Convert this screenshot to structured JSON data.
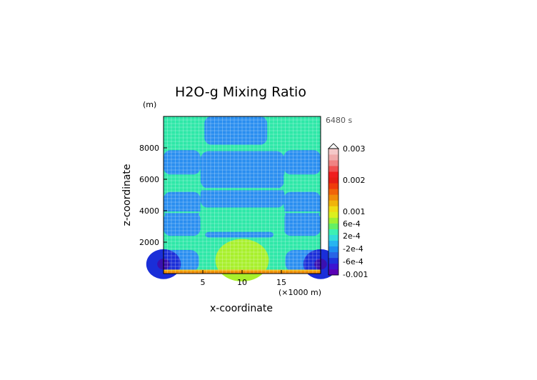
{
  "chart_data": {
    "type": "heatmap",
    "title": "H2O-g Mixing Ratio",
    "y_unit_label": "(m)",
    "x_unit_label": "(×1000 m)",
    "time_label": "6480 s",
    "xlabel": "x-coordinate",
    "ylabel": "z-coordinate",
    "xlim": [
      0,
      20
    ],
    "ylim": [
      0,
      10000
    ],
    "x_ticks": [
      5,
      10,
      15
    ],
    "x_tick_labels": [
      "5",
      "10",
      "15"
    ],
    "y_ticks": [
      2000,
      4000,
      6000,
      8000
    ],
    "y_tick_labels": [
      "2000",
      "4000",
      "6000",
      "8000"
    ],
    "colorbar": {
      "tick_labels": [
        "0.003",
        "0.002",
        "0.001",
        "6e-4",
        "2e-4",
        "-2e-4",
        "-6e-4",
        "-0.001"
      ],
      "colors": [
        "#5a00b4",
        "#3c14d2",
        "#1e32dc",
        "#2864e6",
        "#1e8cf0",
        "#28b4f0",
        "#32dcdc",
        "#3cf0b4",
        "#64f064",
        "#a0f032",
        "#dcf01e",
        "#f0dc14",
        "#f0b40a",
        "#f08c0a",
        "#f0640a",
        "#f03c0a",
        "#e61e14",
        "#f01e1e",
        "#f05050",
        "#f08282",
        "#f0aaaa",
        "#f5c8c8"
      ],
      "over_color": "#ffffff"
    },
    "regions_description": "contour field; levels in mixing-ratio units",
    "layers": [
      {
        "name": "background",
        "value": 0.0001
      },
      {
        "name": "dry-bands",
        "value": -0.0002
      },
      {
        "name": "moist-bubble",
        "value": 0.0004
      },
      {
        "name": "surface-layer",
        "value": 0.0008
      },
      {
        "name": "corner-minimum",
        "value": -0.0009
      }
    ]
  },
  "colors": {
    "background_field": "#2ee8a8",
    "dry_band": "#2a8ef0",
    "bubble": "#a8f02c",
    "surface": "#f0b40a",
    "corner_dark": "#1a2ed8",
    "corner_deep": "#3a10b0",
    "grid": "#ffffff",
    "text": "#000000"
  }
}
